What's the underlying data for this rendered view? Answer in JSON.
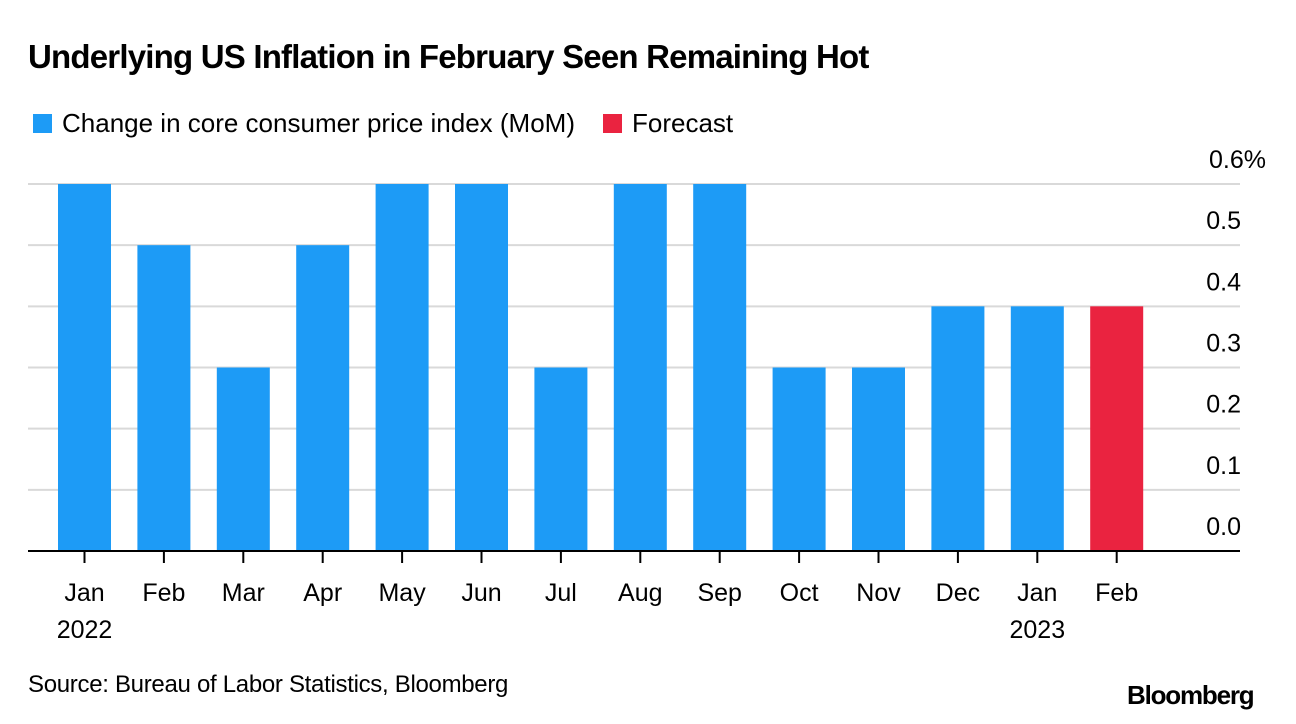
{
  "chart_data": {
    "type": "bar",
    "title": "Underlying US Inflation in February Seen Remaining Hot",
    "xlabel": "",
    "ylabel": "",
    "categories": [
      "Jan",
      "Feb",
      "Mar",
      "Apr",
      "May",
      "Jun",
      "Jul",
      "Aug",
      "Sep",
      "Oct",
      "Nov",
      "Dec",
      "Jan",
      "Feb"
    ],
    "category_sublabels": [
      "2022",
      "",
      "",
      "",
      "",
      "",
      "",
      "",
      "",
      "",
      "",
      "",
      "2023",
      ""
    ],
    "series": [
      {
        "name": "Change in core consumer price index (MoM)",
        "color": "#1d9bf6",
        "values": [
          0.6,
          0.5,
          0.3,
          0.5,
          0.6,
          0.6,
          0.3,
          0.6,
          0.6,
          0.3,
          0.3,
          0.4,
          0.4,
          null
        ]
      },
      {
        "name": "Forecast",
        "color": "#ea2340",
        "values": [
          null,
          null,
          null,
          null,
          null,
          null,
          null,
          null,
          null,
          null,
          null,
          null,
          null,
          0.4
        ]
      }
    ],
    "ylim": [
      0,
      0.6
    ],
    "yticks": [
      0.0,
      0.1,
      0.2,
      0.3,
      0.4,
      0.5,
      0.6
    ],
    "ytick_labels": [
      "0.0",
      "0.1",
      "0.2",
      "0.3",
      "0.4",
      "0.5",
      "0.6%"
    ],
    "y_axis_side": "right",
    "grid": true,
    "legend_position": "top-left"
  },
  "footer": {
    "source": "Source: Bureau of Labor Statistics, Bloomberg",
    "logo": "Bloomberg"
  },
  "colors": {
    "grid": "#d9d9d9",
    "axis": "#000000"
  }
}
